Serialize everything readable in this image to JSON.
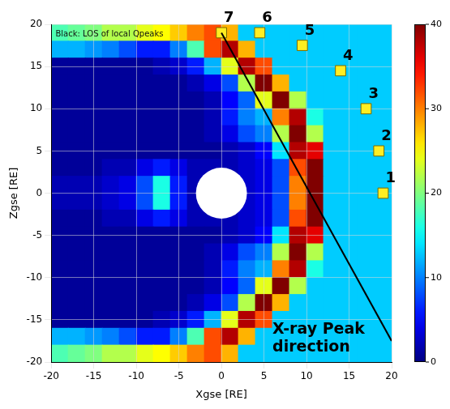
{
  "chart_data": {
    "type": "heatmap",
    "x_label": "Xgse [RE]",
    "y_label": "Zgse [RE]",
    "xlim": [
      -20,
      20
    ],
    "ylim": [
      -20,
      20
    ],
    "xticks": [
      -20,
      -15,
      -10,
      -5,
      0,
      5,
      10,
      15,
      20
    ],
    "yticks": [
      -20,
      -15,
      -10,
      -5,
      0,
      5,
      10,
      15,
      20
    ],
    "grid": true,
    "heatmap": {
      "x": [
        -19,
        -17,
        -15,
        -13,
        -11,
        -9,
        -7,
        -5,
        -3,
        -1,
        1,
        3,
        5,
        7,
        9,
        11,
        13,
        15,
        17,
        19
      ],
      "y": [
        19,
        17,
        15,
        13,
        11,
        9,
        7,
        5,
        3,
        1,
        -1,
        -3,
        -5,
        -7,
        -9,
        -11,
        -13,
        -15,
        -17,
        -19
      ],
      "cells": [
        [
          18,
          19,
          20,
          22,
          22,
          24,
          25,
          27,
          30,
          32,
          28,
          13,
          13,
          13,
          13,
          13,
          13,
          13,
          13,
          13
        ],
        [
          12,
          12,
          11,
          10,
          8,
          6,
          6,
          10,
          18,
          32,
          38,
          28,
          13,
          13,
          13,
          13,
          13,
          13,
          13,
          13
        ],
        [
          1,
          1,
          1,
          1,
          1,
          1,
          2,
          3,
          6,
          12,
          24,
          38,
          32,
          13,
          13,
          13,
          13,
          13,
          13,
          13
        ],
        [
          1,
          1,
          1,
          1,
          1,
          1,
          1,
          1,
          2,
          4,
          8,
          22,
          40,
          28,
          13,
          13,
          13,
          13,
          13,
          13
        ],
        [
          1,
          1,
          1,
          1,
          1,
          1,
          1,
          1,
          1,
          2,
          5,
          9,
          24,
          40,
          22,
          13,
          13,
          13,
          13,
          13
        ],
        [
          1,
          1,
          1,
          1,
          1,
          1,
          1,
          1,
          1,
          2,
          6,
          10,
          12,
          30,
          38,
          16,
          13,
          13,
          13,
          13
        ],
        [
          1,
          1,
          1,
          1,
          1,
          1,
          1,
          1,
          1,
          2,
          4,
          8,
          10,
          22,
          40,
          22,
          13,
          13,
          13,
          13
        ],
        [
          1,
          1,
          1,
          1,
          1,
          1,
          1,
          1,
          1,
          1,
          2,
          3,
          5,
          14,
          38,
          36,
          13,
          13,
          13,
          13
        ],
        [
          1,
          1,
          1,
          2,
          2,
          4,
          6,
          4,
          2,
          2,
          2,
          3,
          4,
          8,
          32,
          40,
          13,
          13,
          13,
          13
        ],
        [
          2,
          2,
          2,
          3,
          4,
          8,
          16,
          6,
          2,
          0,
          0,
          3,
          4,
          8,
          30,
          40,
          13,
          13,
          13,
          13
        ],
        [
          2,
          2,
          2,
          3,
          4,
          8,
          16,
          6,
          2,
          0,
          0,
          3,
          4,
          8,
          30,
          40,
          13,
          13,
          13,
          13
        ],
        [
          1,
          1,
          1,
          2,
          2,
          4,
          6,
          4,
          2,
          2,
          2,
          3,
          4,
          8,
          32,
          40,
          13,
          13,
          13,
          13
        ],
        [
          1,
          1,
          1,
          1,
          1,
          1,
          1,
          1,
          1,
          1,
          2,
          3,
          5,
          14,
          38,
          36,
          13,
          13,
          13,
          13
        ],
        [
          1,
          1,
          1,
          1,
          1,
          1,
          1,
          1,
          1,
          2,
          4,
          8,
          10,
          22,
          40,
          22,
          13,
          13,
          13,
          13
        ],
        [
          1,
          1,
          1,
          1,
          1,
          1,
          1,
          1,
          1,
          2,
          6,
          10,
          12,
          30,
          38,
          16,
          13,
          13,
          13,
          13
        ],
        [
          1,
          1,
          1,
          1,
          1,
          1,
          1,
          1,
          1,
          2,
          5,
          9,
          24,
          40,
          22,
          13,
          13,
          13,
          13,
          13
        ],
        [
          1,
          1,
          1,
          1,
          1,
          1,
          1,
          1,
          2,
          4,
          8,
          22,
          40,
          28,
          13,
          13,
          13,
          13,
          13,
          13
        ],
        [
          1,
          1,
          1,
          1,
          1,
          1,
          2,
          3,
          6,
          12,
          24,
          38,
          32,
          13,
          13,
          13,
          13,
          13,
          13,
          13
        ],
        [
          12,
          12,
          11,
          10,
          8,
          6,
          6,
          10,
          18,
          32,
          38,
          28,
          13,
          13,
          13,
          13,
          13,
          13,
          13,
          13
        ],
        [
          18,
          19,
          20,
          22,
          22,
          24,
          25,
          27,
          30,
          32,
          28,
          13,
          13,
          13,
          13,
          13,
          13,
          13,
          13,
          13
        ]
      ],
      "colorbar": {
        "range": [
          0,
          40
        ],
        "ticks": [
          0,
          10,
          20,
          30,
          40
        ]
      }
    },
    "earth_radius": 3,
    "markers": {
      "marker": "square",
      "color": "#ffee22",
      "points": [
        {
          "label": "1",
          "x": 19,
          "y": 0
        },
        {
          "label": "2",
          "x": 18.5,
          "y": 5
        },
        {
          "label": "3",
          "x": 17,
          "y": 10
        },
        {
          "label": "4",
          "x": 14,
          "y": 14.5
        },
        {
          "label": "5",
          "x": 9.5,
          "y": 17.5
        },
        {
          "label": "6",
          "x": 4.5,
          "y": 19
        },
        {
          "label": "7",
          "x": 0,
          "y": 19
        }
      ]
    },
    "line": {
      "x": [
        0,
        20
      ],
      "y": [
        19,
        -17.5
      ],
      "color": "#000000",
      "line_style": "solid"
    },
    "annotations": [
      {
        "text": "Black: LOS of local Qpeaks",
        "x": -19.5,
        "y": 18.8
      },
      {
        "lines": [
          "X-ray Peak",
          "direction"
        ],
        "x": 6,
        "y": -16.2
      }
    ]
  }
}
